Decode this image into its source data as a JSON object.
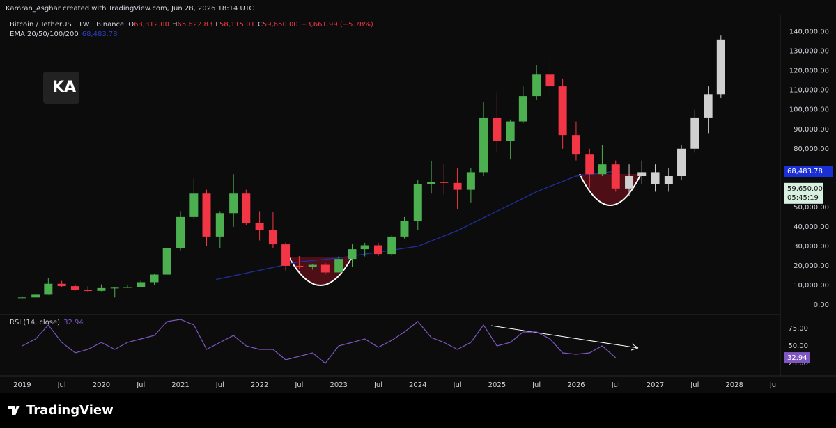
{
  "chart_data": {
    "type": "candlestick",
    "attribution": "Kamran_Asghar created with TradingView.com, Jun 28, 2026 18:14 UTC",
    "symbol": "Bitcoin / TetherUS · 1W · Binance",
    "ohlc_legend": [
      {
        "key": "O",
        "label": "63,312.00"
      },
      {
        "key": "H",
        "label": "65,622.83"
      },
      {
        "key": "L",
        "label": "58,115.01"
      },
      {
        "key": "C",
        "label": "59,650.00"
      }
    ],
    "change": "−3,661.99 (−5.78%)",
    "ema_title": "EMA 20/50/100/200",
    "rsi_title": "RSI (14, close)",
    "logo_text": "KA",
    "brand": "TradingView",
    "countdown": "05:45:19",
    "xlim": [
      2018.79,
      2028.58
    ],
    "xticks": [
      {
        "value": 2019,
        "label": "2019"
      },
      {
        "value": 2019.5,
        "label": "Jul"
      },
      {
        "value": 2020,
        "label": "2020"
      },
      {
        "value": 2020.5,
        "label": "Jul"
      },
      {
        "value": 2021,
        "label": "2021"
      },
      {
        "value": 2021.5,
        "label": "Jul"
      },
      {
        "value": 2022,
        "label": "2022"
      },
      {
        "value": 2022.5,
        "label": "Jul"
      },
      {
        "value": 2023,
        "label": "2023"
      },
      {
        "value": 2023.5,
        "label": "Jul"
      },
      {
        "value": 2024,
        "label": "2024"
      },
      {
        "value": 2024.5,
        "label": "Jul"
      },
      {
        "value": 2025,
        "label": "2025"
      },
      {
        "value": 2025.5,
        "label": "Jul"
      },
      {
        "value": 2026,
        "label": "2026"
      },
      {
        "value": 2026.5,
        "label": "Jul"
      },
      {
        "value": 2027,
        "label": "2027"
      },
      {
        "value": 2027.5,
        "label": "Jul"
      },
      {
        "value": 2028,
        "label": "2028"
      },
      {
        "value": 2028.5,
        "label": "Jul"
      }
    ],
    "ylim": [
      -5000,
      147000
    ],
    "yticks": [
      {
        "value": 0,
        "label": "0.00"
      },
      {
        "value": 10000,
        "label": "10,000.00"
      },
      {
        "value": 20000,
        "label": "20,000.00"
      },
      {
        "value": 30000,
        "label": "30,000.00"
      },
      {
        "value": 40000,
        "label": "40,000.00"
      },
      {
        "value": 50000,
        "label": "50,000.00"
      },
      {
        "value": 80000,
        "label": "80,000.00"
      },
      {
        "value": 90000,
        "label": "90,000.00"
      },
      {
        "value": 100000,
        "label": "100,000.00"
      },
      {
        "value": 110000,
        "label": "110,000.00"
      },
      {
        "value": 120000,
        "label": "120,000.00"
      },
      {
        "value": 130000,
        "label": "130,000.00"
      },
      {
        "value": 140000,
        "label": "140,000.00"
      }
    ],
    "rsi_lim": [
      7,
      95
    ],
    "rsi_ticks": [
      {
        "value": 25,
        "label": "25.00"
      },
      {
        "value": 50,
        "label": "50.00"
      },
      {
        "value": 75,
        "label": "75.00"
      }
    ],
    "ema_last": {
      "value": 68483.78,
      "label": "68,483.78"
    },
    "last_price": {
      "value": 59650,
      "label": "59,650.00"
    },
    "rsi_last": {
      "value": 32.94,
      "label": "32.94"
    },
    "candles": {
      "up_color": "#4caf50",
      "down_color": "#f23645",
      "x": [
        2019.0,
        2019.17,
        2019.33,
        2019.5,
        2019.67,
        2019.83,
        2020.0,
        2020.17,
        2020.33,
        2020.5,
        2020.67,
        2020.83,
        2021.0,
        2021.17,
        2021.33,
        2021.5,
        2021.67,
        2021.83,
        2022.0,
        2022.17,
        2022.33,
        2022.5,
        2022.67,
        2022.83,
        2023.0,
        2023.17,
        2023.33,
        2023.5,
        2023.67,
        2023.83,
        2024.0,
        2024.17,
        2024.33,
        2024.5,
        2024.67,
        2024.83,
        2025.0,
        2025.17,
        2025.33,
        2025.5,
        2025.67,
        2025.83,
        2026.0,
        2026.17,
        2026.33,
        2026.5
      ],
      "ohlc": [
        [
          3700,
          4100,
          3400,
          3800
        ],
        [
          3800,
          5300,
          3700,
          5200
        ],
        [
          5200,
          13800,
          5100,
          10800
        ],
        [
          10800,
          12300,
          9100,
          9600
        ],
        [
          9600,
          10500,
          7300,
          7500
        ],
        [
          7500,
          9500,
          6500,
          7200
        ],
        [
          7200,
          10500,
          7000,
          8600
        ],
        [
          8600,
          9200,
          3800,
          8800
        ],
        [
          8800,
          10400,
          8600,
          9100
        ],
        [
          9100,
          12400,
          9000,
          11600
        ],
        [
          11600,
          16000,
          10200,
          15500
        ],
        [
          15500,
          29000,
          15500,
          29000
        ],
        [
          29000,
          48000,
          28000,
          45000
        ],
        [
          45000,
          64800,
          44000,
          57000
        ],
        [
          57000,
          59000,
          30000,
          35000
        ],
        [
          35000,
          48000,
          29000,
          47000
        ],
        [
          47000,
          67000,
          40000,
          57000
        ],
        [
          57000,
          59000,
          41000,
          42000
        ],
        [
          42000,
          48000,
          33000,
          38500
        ],
        [
          38500,
          47500,
          29000,
          31000
        ],
        [
          31000,
          32000,
          17600,
          20000
        ],
        [
          20000,
          25000,
          18500,
          19500
        ],
        [
          19500,
          21000,
          18000,
          20500
        ],
        [
          20500,
          21500,
          15500,
          16600
        ],
        [
          16600,
          25000,
          16500,
          23500
        ],
        [
          23500,
          31000,
          19500,
          28500
        ],
        [
          28500,
          31800,
          24800,
          30500
        ],
        [
          30500,
          31800,
          25000,
          26000
        ],
        [
          26000,
          36000,
          25000,
          35000
        ],
        [
          35000,
          45000,
          34000,
          43000
        ],
        [
          43000,
          64000,
          38500,
          62000
        ],
        [
          62000,
          73800,
          57000,
          63000
        ],
        [
          63000,
          72000,
          56500,
          62500
        ],
        [
          62500,
          70000,
          49000,
          59000
        ],
        [
          59000,
          70000,
          52500,
          68000
        ],
        [
          68000,
          104000,
          66000,
          96000
        ],
        [
          96000,
          109000,
          78000,
          84000
        ],
        [
          84000,
          95000,
          74500,
          94000
        ],
        [
          94000,
          112000,
          93000,
          107000
        ],
        [
          107000,
          123000,
          105000,
          118000
        ],
        [
          118000,
          126000,
          107000,
          112000
        ],
        [
          112000,
          116000,
          80000,
          87000
        ],
        [
          87000,
          94000,
          74000,
          77000
        ],
        [
          77000,
          80000,
          60000,
          67000
        ],
        [
          67000,
          82000,
          66000,
          72000
        ],
        [
          72000,
          74000,
          58000,
          59650
        ]
      ]
    },
    "projection": {
      "color": "#d0d0d0",
      "x": [
        2026.67,
        2026.83,
        2027.0,
        2027.17,
        2027.33,
        2027.5,
        2027.67,
        2027.83
      ],
      "ohlc": [
        [
          59650,
          72000,
          56000,
          66000
        ],
        [
          66000,
          74000,
          62000,
          68000
        ],
        [
          68000,
          72000,
          58000,
          62000
        ],
        [
          62000,
          70000,
          58000,
          66000
        ],
        [
          66000,
          82000,
          64000,
          80000
        ],
        [
          80000,
          100000,
          78000,
          96000
        ],
        [
          96000,
          112000,
          88000,
          108000
        ],
        [
          108000,
          138000,
          106000,
          136000
        ]
      ]
    },
    "ema": {
      "color": "#1e2f9e",
      "x": [
        2021.45,
        2022.5,
        2023.0,
        2023.5,
        2024.0,
        2024.5,
        2025.0,
        2025.5,
        2026.0,
        2026.5
      ],
      "values": [
        13000,
        22000,
        24000,
        27000,
        30000,
        38000,
        48000,
        58000,
        66000,
        68483.78
      ]
    },
    "rsi": {
      "color": "#7e57c2",
      "values": [
        50,
        60,
        80,
        55,
        40,
        45,
        55,
        45,
        55,
        60,
        65,
        85,
        88,
        80,
        45,
        55,
        65,
        50,
        45,
        45,
        30,
        35,
        40,
        25,
        50,
        55,
        60,
        48,
        58,
        70,
        85,
        62,
        55,
        45,
        55,
        80,
        50,
        55,
        70,
        70,
        60,
        40,
        38,
        40,
        50,
        32.94
      ]
    }
  }
}
